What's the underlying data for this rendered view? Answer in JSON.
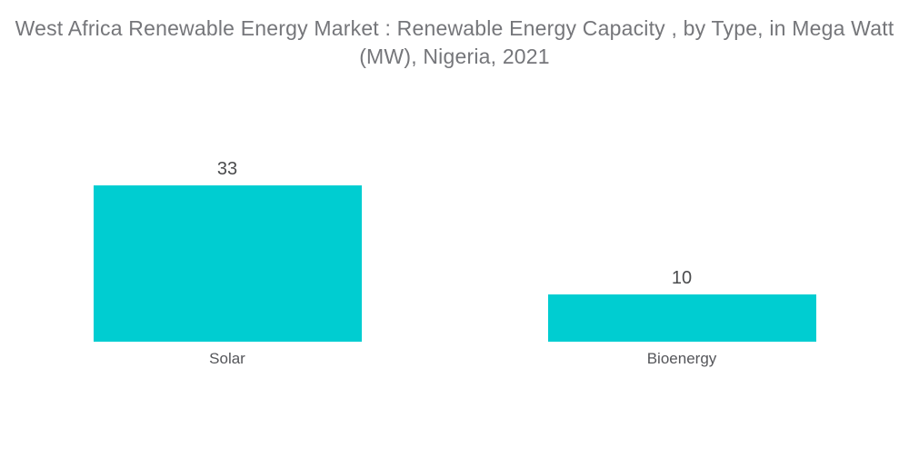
{
  "chart_data": {
    "type": "bar",
    "orientation": "vertical",
    "title": "West Africa Renewable Energy Market : Renewable Energy Capacity , by Type, in Mega Watt (MW), Nigeria, 2021",
    "title_line1": "West Africa Renewable Energy Market : Renewable Energy Capacity , by Type, in Mega Watt",
    "title_line2": "(MW), Nigeria, 2021",
    "categories": [
      "Solar",
      "Bioenergy"
    ],
    "values": [
      33,
      10
    ],
    "unit": "MW",
    "xlabel": "",
    "ylabel": "",
    "legend": "none",
    "grid": "off",
    "axes_visible": false,
    "bar_color": "#00CDD1",
    "title_color": "#75767A",
    "value_label_color": "#4A4B4D",
    "category_label_color": "#55565A",
    "background_color": "#FFFFFF"
  }
}
